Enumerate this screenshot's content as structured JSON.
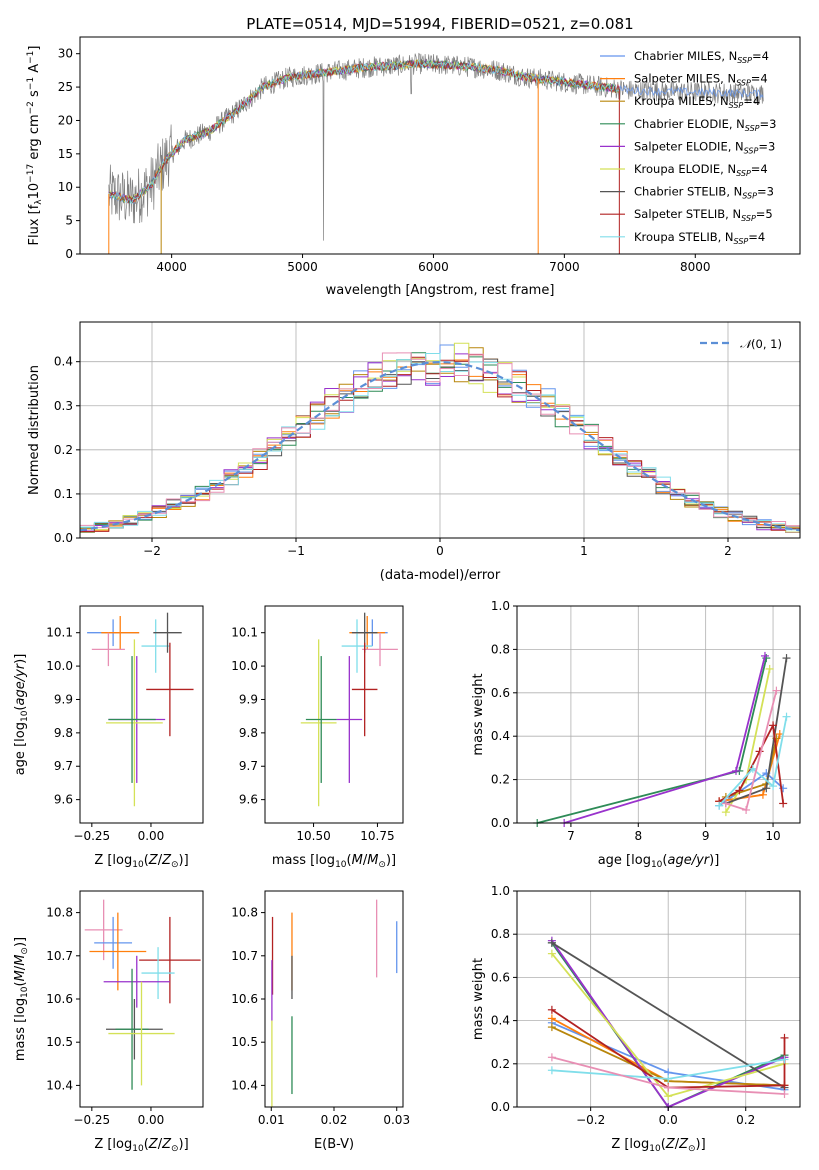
{
  "figure": {
    "title": "PLATE=0514, MJD=51994, FIBERID=0521, z=0.081"
  },
  "colors": {
    "chabrier_miles": "#6495ed",
    "salpeter_miles": "#ff7f0e",
    "kroupa_miles": "#b8860b",
    "chabrier_elodie": "#2e8b57",
    "salpeter_elodie": "#9932cc",
    "kroupa_elodie": "#d4e157",
    "chabrier_stelib": "#555555",
    "salpeter_stelib": "#b22222",
    "kroupa_stelib": "#80deea",
    "extra_pink": "#e88fb4",
    "gaussian": "#5b8fd6",
    "grid": "#b0b0b0"
  },
  "chart_data": [
    {
      "id": "spectrum",
      "type": "line",
      "xlabel": "wavelength [Angstrom, rest frame]",
      "ylabel": "Flux [f",
      "xlim": [
        3300,
        8800
      ],
      "ylim": [
        0,
        32.5
      ],
      "xticks": [
        4000,
        5000,
        6000,
        7000,
        8000
      ],
      "yticks": [
        0,
        5,
        10,
        15,
        20,
        25,
        30
      ],
      "continuum_x": [
        3520,
        3700,
        3850,
        3950,
        4100,
        4300,
        4500,
        4700,
        4900,
        5100,
        5300,
        5500,
        5700,
        5900,
        6100,
        6300,
        6500,
        6700,
        6900,
        7100,
        7300,
        7500
      ],
      "continuum_y": [
        9,
        8,
        10.5,
        14,
        17,
        18.5,
        21.5,
        25,
        26.5,
        27,
        27.5,
        28,
        28.2,
        28.5,
        28.3,
        28,
        27.5,
        26.5,
        26,
        25.5,
        25,
        24.5
      ],
      "grey_extent": [
        3520,
        8520
      ],
      "legend": [
        {
          "label": "Chabrier MILES, N",
          "sub": "SSP",
          "suffix": "=4",
          "color": "chabrier_miles"
        },
        {
          "label": "Salpeter MILES, N",
          "sub": "SSP",
          "suffix": "=4",
          "color": "salpeter_miles"
        },
        {
          "label": "Kroupa MILES, N",
          "sub": "SSP",
          "suffix": "=4",
          "color": "kroupa_miles"
        },
        {
          "label": "Chabrier ELODIE, N",
          "sub": "SSP",
          "suffix": "=3",
          "color": "chabrier_elodie"
        },
        {
          "label": "Salpeter ELODIE, N",
          "sub": "SSP",
          "suffix": "=3",
          "color": "salpeter_elodie"
        },
        {
          "label": "Kroupa ELODIE, N",
          "sub": "SSP",
          "suffix": "=4",
          "color": "kroupa_elodie"
        },
        {
          "label": "Chabrier STELIB, N",
          "sub": "SSP",
          "suffix": "=3",
          "color": "chabrier_stelib"
        },
        {
          "label": "Salpeter STELIB, N",
          "sub": "SSP",
          "suffix": "=5",
          "color": "salpeter_stelib"
        },
        {
          "label": "Kroupa STELIB, N",
          "sub": "SSP",
          "suffix": "=4",
          "color": "kroupa_stelib"
        }
      ]
    },
    {
      "id": "residuals",
      "type": "histogram",
      "xlabel": "(data-model)/error",
      "ylabel": "Normed distribution",
      "xlim": [
        -2.5,
        2.5
      ],
      "ylim": [
        0,
        0.49
      ],
      "xticks": [
        -2,
        -1,
        0,
        1,
        2
      ],
      "yticks": [
        0.0,
        0.1,
        0.2,
        0.3,
        0.4
      ],
      "bin_width": 0.1,
      "gaussian": {
        "label": "N(0,1)",
        "mean": 0,
        "sigma": 1
      },
      "grid": true,
      "legend_position": "top-right"
    },
    {
      "id": "age_vs_Z",
      "type": "errorbar",
      "xlabel": "Z [log10(Z/Z⊙)]",
      "ylabel": "age [log10(age/yr)]",
      "xlim": [
        -0.3,
        0.22
      ],
      "ylim": [
        9.53,
        10.18
      ],
      "xticks": [
        -0.25,
        0.0
      ],
      "yticks": [
        9.6,
        9.7,
        9.8,
        9.9,
        10.0,
        10.1
      ],
      "points": [
        {
          "x": -0.16,
          "y": 10.1,
          "xerr": 0.11,
          "yerr": 0.04,
          "color": "chabrier_miles"
        },
        {
          "x": -0.13,
          "y": 10.1,
          "xerr": 0.08,
          "yerr": 0.05,
          "color": "salpeter_miles"
        },
        {
          "x": -0.18,
          "y": 10.05,
          "xerr": 0.07,
          "yerr": 0.05,
          "color": "extra_pink"
        },
        {
          "x": 0.02,
          "y": 10.06,
          "xerr": 0.06,
          "yerr": 0.08,
          "color": "kroupa_stelib"
        },
        {
          "x": 0.07,
          "y": 10.1,
          "xerr": 0.06,
          "yerr": 0.06,
          "color": "chabrier_stelib"
        },
        {
          "x": 0.08,
          "y": 9.93,
          "xerr": 0.1,
          "yerr": 0.14,
          "color": "salpeter_stelib"
        },
        {
          "x": -0.06,
          "y": 9.84,
          "xerr": 0.12,
          "yerr": 0.19,
          "color": "salpeter_elodie"
        },
        {
          "x": -0.07,
          "y": 9.83,
          "xerr": 0.12,
          "yerr": 0.25,
          "color": "kroupa_elodie"
        },
        {
          "x": -0.08,
          "y": 9.84,
          "xerr": 0.1,
          "yerr": 0.19,
          "color": "chabrier_elodie"
        }
      ]
    },
    {
      "id": "age_vs_mass",
      "type": "errorbar",
      "xlabel": "mass [log10(M/M⊙)]",
      "ylabel": "",
      "xlim": [
        10.31,
        10.85
      ],
      "ylim": [
        9.53,
        10.18
      ],
      "xticks": [
        10.5,
        10.75
      ],
      "yticks": [
        9.6,
        9.7,
        9.8,
        9.9,
        10.0,
        10.1
      ],
      "points": [
        {
          "x": 10.73,
          "y": 10.1,
          "xerr": 0.06,
          "yerr": 0.04,
          "color": "chabrier_miles"
        },
        {
          "x": 10.71,
          "y": 10.1,
          "xerr": 0.07,
          "yerr": 0.05,
          "color": "salpeter_miles"
        },
        {
          "x": 10.76,
          "y": 10.05,
          "xerr": 0.07,
          "yerr": 0.05,
          "color": "extra_pink"
        },
        {
          "x": 10.67,
          "y": 10.06,
          "xerr": 0.06,
          "yerr": 0.08,
          "color": "kroupa_stelib"
        },
        {
          "x": 10.7,
          "y": 10.1,
          "xerr": 0.05,
          "yerr": 0.06,
          "color": "chabrier_stelib"
        },
        {
          "x": 10.7,
          "y": 9.93,
          "xerr": 0.05,
          "yerr": 0.14,
          "color": "salpeter_stelib"
        },
        {
          "x": 10.64,
          "y": 9.84,
          "xerr": 0.05,
          "yerr": 0.19,
          "color": "salpeter_elodie"
        },
        {
          "x": 10.52,
          "y": 9.83,
          "xerr": 0.07,
          "yerr": 0.25,
          "color": "kroupa_elodie"
        },
        {
          "x": 10.53,
          "y": 9.84,
          "xerr": 0.06,
          "yerr": 0.19,
          "color": "chabrier_elodie"
        }
      ]
    },
    {
      "id": "weight_vs_age",
      "type": "line",
      "xlabel": "age [log10(age/yr)]",
      "ylabel": "mass weight",
      "xlim": [
        6.2,
        10.4
      ],
      "ylim": [
        0,
        1.0
      ],
      "xticks": [
        7,
        8,
        9,
        10
      ],
      "yticks": [
        0.0,
        0.2,
        0.4,
        0.6,
        0.8,
        1.0
      ],
      "grid": true,
      "series": [
        {
          "color": "chabrier_miles",
          "x": [
            9.2,
            9.9,
            10.15
          ],
          "y": [
            0.08,
            0.23,
            0.16
          ]
        },
        {
          "color": "salpeter_miles",
          "x": [
            9.2,
            9.85,
            10.1
          ],
          "y": [
            0.1,
            0.13,
            0.41
          ]
        },
        {
          "color": "kroupa_miles",
          "x": [
            9.3,
            9.9,
            10.05
          ],
          "y": [
            0.12,
            0.18,
            0.39
          ]
        },
        {
          "color": "chabrier_elodie",
          "x": [
            6.5,
            9.5,
            9.9
          ],
          "y": [
            0.0,
            0.24,
            0.76
          ]
        },
        {
          "color": "salpeter_elodie",
          "x": [
            6.9,
            9.45,
            9.88
          ],
          "y": [
            0.0,
            0.24,
            0.77
          ]
        },
        {
          "color": "kroupa_elodie",
          "x": [
            9.3,
            9.6,
            9.95
          ],
          "y": [
            0.05,
            0.2,
            0.71
          ]
        },
        {
          "color": "chabrier_stelib",
          "x": [
            9.3,
            9.9,
            10.2
          ],
          "y": [
            0.09,
            0.16,
            0.76
          ]
        },
        {
          "color": "salpeter_stelib",
          "x": [
            9.2,
            9.5,
            9.8,
            10.0,
            10.15
          ],
          "y": [
            0.1,
            0.15,
            0.33,
            0.45,
            0.09
          ]
        },
        {
          "color": "kroupa_stelib",
          "x": [
            9.2,
            9.7,
            10.0,
            10.2
          ],
          "y": [
            0.08,
            0.25,
            0.17,
            0.49
          ]
        },
        {
          "color": "extra_pink",
          "x": [
            9.3,
            9.6,
            10.05
          ],
          "y": [
            0.09,
            0.06,
            0.61
          ]
        }
      ]
    },
    {
      "id": "mass_vs_Z",
      "type": "errorbar",
      "xlabel": "Z [log10(Z/Z⊙)]",
      "ylabel": "mass [log10(M/M⊙)]",
      "xlim": [
        -0.3,
        0.22
      ],
      "ylim": [
        10.35,
        10.85
      ],
      "xticks": [
        -0.25,
        0.0
      ],
      "yticks": [
        10.4,
        10.5,
        10.6,
        10.7,
        10.8
      ],
      "points": [
        {
          "x": -0.2,
          "y": 10.76,
          "xerr": 0.08,
          "yerr": 0.07,
          "color": "extra_pink"
        },
        {
          "x": -0.16,
          "y": 10.73,
          "xerr": 0.08,
          "yerr": 0.06,
          "color": "chabrier_miles"
        },
        {
          "x": -0.14,
          "y": 10.71,
          "xerr": 0.12,
          "yerr": 0.09,
          "color": "salpeter_miles"
        },
        {
          "x": 0.08,
          "y": 10.69,
          "xerr": 0.13,
          "yerr": 0.1,
          "color": "salpeter_stelib"
        },
        {
          "x": 0.03,
          "y": 10.66,
          "xerr": 0.07,
          "yerr": 0.06,
          "color": "kroupa_stelib"
        },
        {
          "x": -0.06,
          "y": 10.64,
          "xerr": 0.14,
          "yerr": 0.06,
          "color": "salpeter_elodie"
        },
        {
          "x": -0.07,
          "y": 10.53,
          "xerr": 0.12,
          "yerr": 0.07,
          "color": "chabrier_stelib"
        },
        {
          "x": -0.08,
          "y": 10.53,
          "xerr": 0.07,
          "yerr": 0.14,
          "color": "chabrier_elodie"
        },
        {
          "x": -0.04,
          "y": 10.52,
          "xerr": 0.14,
          "yerr": 0.12,
          "color": "kroupa_elodie"
        }
      ]
    },
    {
      "id": "mass_vs_ebv",
      "type": "errorbar",
      "xlabel": "E(B-V)",
      "ylabel": "",
      "xlim": [
        0.009,
        0.031
      ],
      "ylim": [
        10.35,
        10.85
      ],
      "xticks": [
        0.01,
        0.02,
        0.03
      ],
      "yticks": [
        10.4,
        10.5,
        10.6,
        10.7,
        10.8
      ],
      "points": [
        {
          "x": 0.0102,
          "y": 10.7,
          "xerr": 0,
          "yerr": 0.09,
          "color": "salpeter_stelib"
        },
        {
          "x": 0.0101,
          "y": 10.62,
          "xerr": 0,
          "yerr": 0.07,
          "color": "salpeter_elodie"
        },
        {
          "x": 0.0101,
          "y": 10.45,
          "xerr": 0,
          "yerr": 0.1,
          "color": "kroupa_elodie"
        },
        {
          "x": 0.0133,
          "y": 10.71,
          "xerr": 0,
          "yerr": 0.09,
          "color": "salpeter_miles"
        },
        {
          "x": 0.0133,
          "y": 10.65,
          "xerr": 0,
          "yerr": 0.05,
          "color": "chabrier_stelib"
        },
        {
          "x": 0.0133,
          "y": 10.47,
          "xerr": 0,
          "yerr": 0.09,
          "color": "chabrier_elodie"
        },
        {
          "x": 0.0268,
          "y": 10.74,
          "xerr": 0,
          "yerr": 0.09,
          "color": "extra_pink"
        },
        {
          "x": 0.03,
          "y": 10.72,
          "xerr": 0,
          "yerr": 0.06,
          "color": "chabrier_miles"
        }
      ]
    },
    {
      "id": "weight_vs_Z",
      "type": "line",
      "xlabel": "Z [log10(Z/Z⊙)]",
      "ylabel": "mass weight",
      "xlim": [
        -0.39,
        0.34
      ],
      "ylim": [
        0,
        1.0
      ],
      "xticks": [
        -0.2,
        0.0,
        0.2
      ],
      "yticks": [
        0.0,
        0.2,
        0.4,
        0.6,
        0.8,
        1.0
      ],
      "grid": true,
      "series": [
        {
          "color": "chabrier_miles",
          "x": [
            -0.3,
            0.0,
            0.3
          ],
          "y": [
            0.39,
            0.16,
            0.08
          ]
        },
        {
          "color": "salpeter_miles",
          "x": [
            -0.3,
            0.0,
            0.3
          ],
          "y": [
            0.41,
            0.12,
            0.1
          ]
        },
        {
          "color": "kroupa_miles",
          "x": [
            -0.3,
            0.0,
            0.3
          ],
          "y": [
            0.37,
            0.12,
            0.1
          ]
        },
        {
          "color": "chabrier_elodie",
          "x": [
            -0.3,
            0.0,
            0.3
          ],
          "y": [
            0.76,
            0.0,
            0.24
          ]
        },
        {
          "color": "salpeter_elodie",
          "x": [
            -0.3,
            0.0,
            0.3
          ],
          "y": [
            0.77,
            0.0,
            0.23
          ]
        },
        {
          "color": "kroupa_elodie",
          "x": [
            -0.3,
            0.0,
            0.3
          ],
          "y": [
            0.71,
            0.05,
            0.2
          ]
        },
        {
          "color": "chabrier_stelib",
          "x": [
            -0.3,
            0.3
          ],
          "y": [
            0.76,
            0.09
          ]
        },
        {
          "color": "salpeter_stelib",
          "x": [
            -0.3,
            0.0,
            0.3,
            0.3
          ],
          "y": [
            0.45,
            0.09,
            0.1,
            0.32
          ]
        },
        {
          "color": "kroupa_stelib",
          "x": [
            -0.3,
            0.0,
            0.3
          ],
          "y": [
            0.17,
            0.13,
            0.22
          ]
        },
        {
          "color": "extra_pink",
          "x": [
            -0.3,
            0.0,
            0.3
          ],
          "y": [
            0.23,
            0.09,
            0.06
          ]
        }
      ]
    }
  ]
}
